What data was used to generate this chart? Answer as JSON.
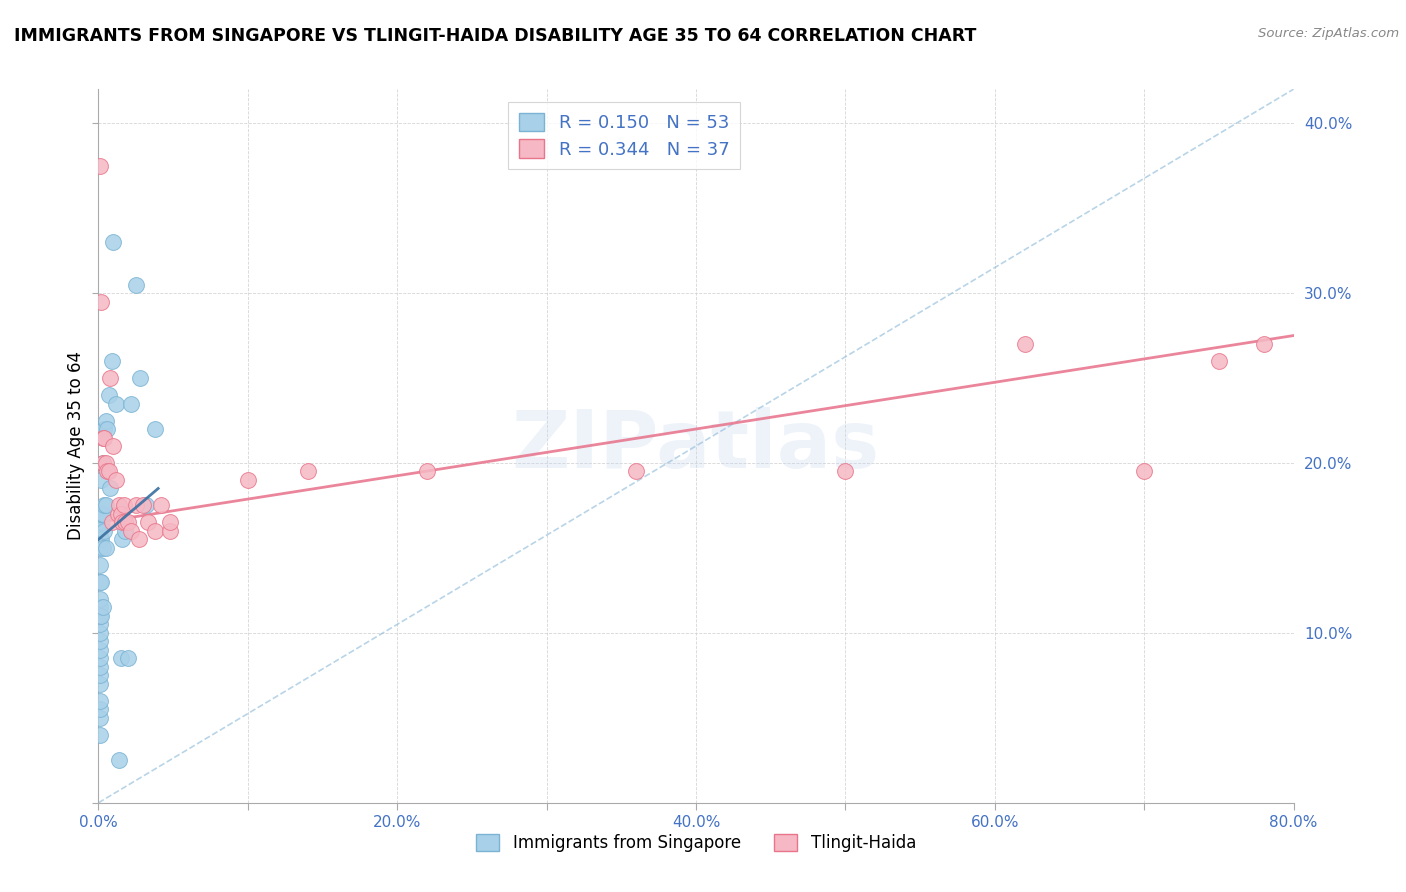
{
  "title": "IMMIGRANTS FROM SINGAPORE VS TLINGIT-HAIDA DISABILITY AGE 35 TO 64 CORRELATION CHART",
  "source": "Source: ZipAtlas.com",
  "ylabel": "Disability Age 35 to 64",
  "xlim": [
    0.0,
    0.8
  ],
  "ylim": [
    0.0,
    0.42
  ],
  "xticks": [
    0.0,
    0.1,
    0.2,
    0.3,
    0.4,
    0.5,
    0.6,
    0.7,
    0.8
  ],
  "yticks": [
    0.0,
    0.1,
    0.2,
    0.3,
    0.4
  ],
  "xtick_labels": [
    "0.0%",
    "",
    "20.0%",
    "",
    "40.0%",
    "",
    "60.0%",
    "",
    "80.0%"
  ],
  "series1_r": "0.150",
  "series1_n": "53",
  "series2_r": "0.344",
  "series2_n": "37",
  "series1_color": "#a8d0e8",
  "series2_color": "#f5b8c4",
  "series1_edge_color": "#7ab3d4",
  "series2_edge_color": "#e8758a",
  "series1_line_color": "#8ab8d8",
  "series2_line_color": "#e87890",
  "watermark": "ZIPatlas",
  "blue_x": [
    0.001,
    0.001,
    0.001,
    0.001,
    0.001,
    0.001,
    0.001,
    0.001,
    0.001,
    0.001,
    0.001,
    0.001,
    0.001,
    0.001,
    0.001,
    0.001,
    0.001,
    0.001,
    0.001,
    0.001,
    0.0015,
    0.0015,
    0.002,
    0.002,
    0.002,
    0.002,
    0.002,
    0.003,
    0.003,
    0.003,
    0.003,
    0.004,
    0.004,
    0.004,
    0.005,
    0.005,
    0.005,
    0.006,
    0.007,
    0.008,
    0.009,
    0.01,
    0.012,
    0.014,
    0.015,
    0.016,
    0.018,
    0.02,
    0.022,
    0.025,
    0.028,
    0.032,
    0.038
  ],
  "blue_y": [
    0.04,
    0.05,
    0.055,
    0.06,
    0.07,
    0.075,
    0.08,
    0.085,
    0.09,
    0.095,
    0.1,
    0.105,
    0.11,
    0.115,
    0.12,
    0.13,
    0.14,
    0.15,
    0.155,
    0.16,
    0.165,
    0.17,
    0.11,
    0.13,
    0.155,
    0.17,
    0.19,
    0.115,
    0.15,
    0.17,
    0.2,
    0.16,
    0.175,
    0.22,
    0.15,
    0.175,
    0.225,
    0.22,
    0.24,
    0.185,
    0.26,
    0.33,
    0.235,
    0.025,
    0.085,
    0.155,
    0.16,
    0.085,
    0.235,
    0.305,
    0.25,
    0.175,
    0.22
  ],
  "pink_x": [
    0.001,
    0.002,
    0.003,
    0.003,
    0.004,
    0.005,
    0.006,
    0.007,
    0.008,
    0.009,
    0.01,
    0.012,
    0.013,
    0.014,
    0.015,
    0.016,
    0.017,
    0.018,
    0.02,
    0.022,
    0.025,
    0.027,
    0.03,
    0.033,
    0.038,
    0.042,
    0.048,
    0.048,
    0.1,
    0.14,
    0.22,
    0.36,
    0.5,
    0.62,
    0.7,
    0.75,
    0.78
  ],
  "pink_y": [
    0.375,
    0.295,
    0.2,
    0.215,
    0.215,
    0.2,
    0.195,
    0.195,
    0.25,
    0.165,
    0.21,
    0.19,
    0.17,
    0.175,
    0.17,
    0.165,
    0.175,
    0.165,
    0.165,
    0.16,
    0.175,
    0.155,
    0.175,
    0.165,
    0.16,
    0.175,
    0.16,
    0.165,
    0.19,
    0.195,
    0.195,
    0.195,
    0.195,
    0.27,
    0.195,
    0.26,
    0.27
  ],
  "blue_line_x0": 0.0,
  "blue_line_y0": 0.0,
  "blue_line_x1": 0.8,
  "blue_line_y1": 0.42,
  "pink_line_x0": 0.0,
  "pink_line_y0": 0.165,
  "pink_line_x1": 0.8,
  "pink_line_y1": 0.275
}
